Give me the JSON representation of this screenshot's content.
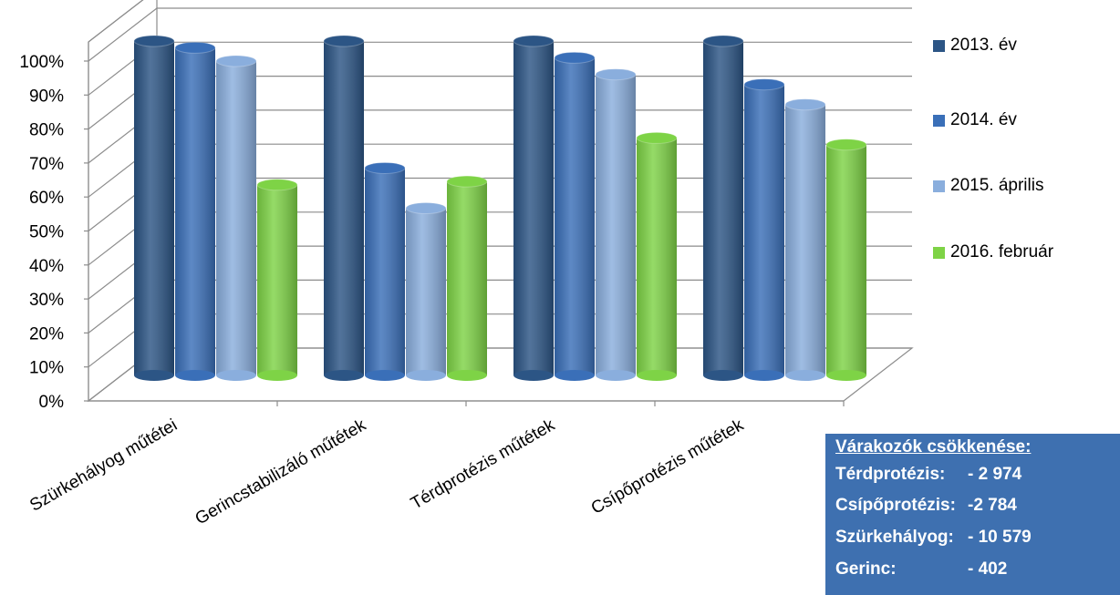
{
  "chart_data": {
    "type": "bar",
    "ylim": [
      0,
      100
    ],
    "y_ticks": [
      "0%",
      "10%",
      "20%",
      "30%",
      "40%",
      "50%",
      "60%",
      "70%",
      "80%",
      "90%",
      "100%"
    ],
    "categories": [
      "Szürkehályog műtétei",
      "Gerincstabilizáló műtétek",
      "Térdprotézis műtétek",
      "Csípőprotézis műtétek"
    ],
    "series": [
      {
        "name": "2013. év",
        "values": [
          100,
          100,
          100,
          100
        ],
        "color": "#2c5585"
      },
      {
        "name": "2014. év",
        "values": [
          98,
          62,
          95,
          87
        ],
        "color": "#3a6fb8"
      },
      {
        "name": "2015. április",
        "values": [
          94,
          50,
          90,
          81
        ],
        "color": "#8aaedd"
      },
      {
        "name": "2016. február",
        "values": [
          57,
          58,
          71,
          69
        ],
        "color": "#7ed346"
      }
    ],
    "legend_position": "right",
    "grid": true
  },
  "info_box": {
    "title": "Várakozók csökkenése:",
    "rows": [
      {
        "label": "Térdprotézis:",
        "value": "- 2 974"
      },
      {
        "label": "Csípőprotézis:",
        "value": "-2 784"
      },
      {
        "label": "Szürkehályog:",
        "value": "- 10 579"
      },
      {
        "label": "Gerinc:",
        "value": "- 402"
      }
    ],
    "background": "#3e70b0"
  }
}
